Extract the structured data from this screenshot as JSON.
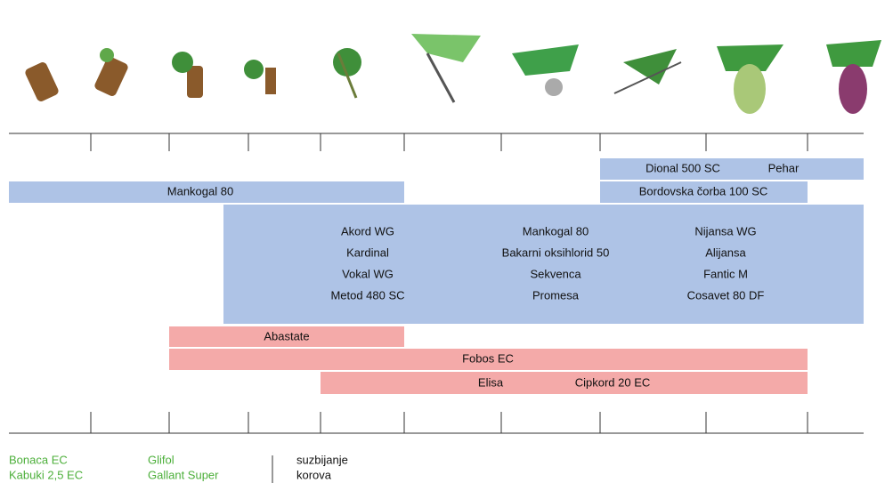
{
  "fungicides": {
    "top_left": "Dional 500 SC",
    "top_right": "Pehar",
    "row2_left": "Mankogal 80",
    "row2_right": "Bordovska čorba 100 SC",
    "block_columns": [
      [
        "Akord WG",
        "Kardinal",
        "Vokal WG",
        "Metod 480 SC"
      ],
      [
        "Mankogal 80",
        "Bakarni oksihlorid 50",
        "Sekvenca",
        "Promesa"
      ],
      [
        "Nijansa WG",
        "Alijansa",
        "Fantic M",
        "Cosavet 80 DF"
      ]
    ]
  },
  "insecticides": {
    "row1": "Abastate",
    "row2": "Fobos EC",
    "row3_left": "Elisa",
    "row3_right": "Cipkord 20 EC"
  },
  "herbicides": {
    "column1": [
      "Bonaca EC",
      "Kabuki 2,5 EC"
    ],
    "column2": [
      "Glifol",
      "Gallant Super"
    ],
    "note": [
      "suzbijanje",
      "korova"
    ]
  }
}
